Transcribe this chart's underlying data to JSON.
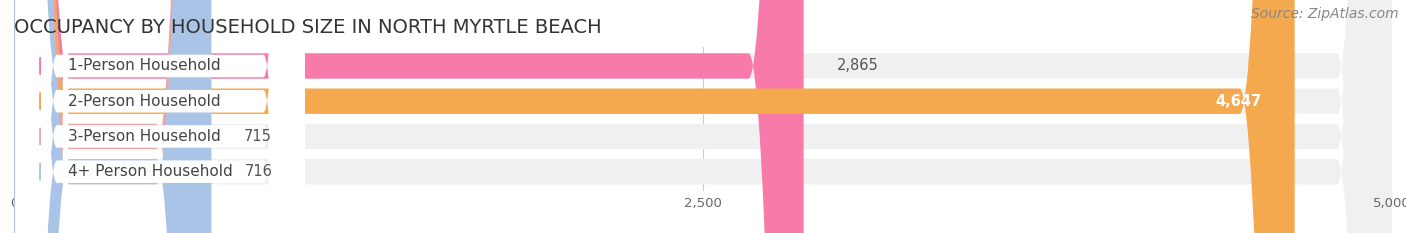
{
  "title": "OCCUPANCY BY HOUSEHOLD SIZE IN NORTH MYRTLE BEACH",
  "source": "Source: ZipAtlas.com",
  "categories": [
    "1-Person Household",
    "2-Person Household",
    "3-Person Household",
    "4+ Person Household"
  ],
  "values": [
    2865,
    4647,
    715,
    716
  ],
  "bar_colors": [
    "#f87aaa",
    "#f5a94e",
    "#e8a8a8",
    "#aac4e8"
  ],
  "bar_bg_colors": [
    "#f0f0f0",
    "#f0f0f0",
    "#f0f0f0",
    "#f0f0f0"
  ],
  "dot_colors": [
    "#f87aaa",
    "#f5a94e",
    "#e8a8a8",
    "#aac4e8"
  ],
  "xlim": [
    0,
    5000
  ],
  "xticks": [
    0,
    2500,
    5000
  ],
  "figure_bg": "#ffffff",
  "plot_bg": "#ffffff",
  "bar_row_bg": "#f5f5f5",
  "title_fontsize": 14,
  "source_fontsize": 10,
  "label_fontsize": 11,
  "value_fontsize": 10.5
}
